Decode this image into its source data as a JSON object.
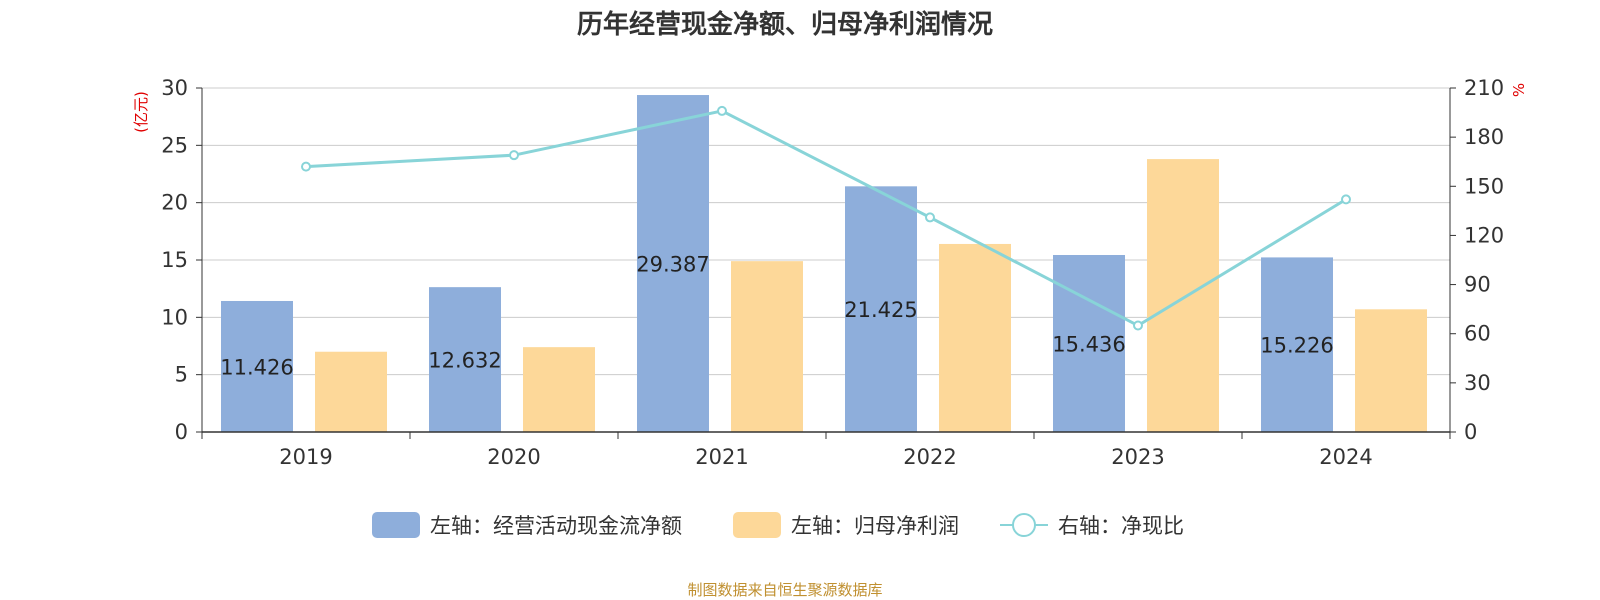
{
  "title": "历年经营现金净额、归母净利润情况",
  "footer": "制图数据来自恒生聚源数据库",
  "chart_data": {
    "type": "bar",
    "categories": [
      "2019",
      "2020",
      "2021",
      "2022",
      "2023",
      "2024"
    ],
    "left_axis": {
      "unit": "(亿元)",
      "range": [
        0,
        30
      ],
      "ticks": [
        "0",
        "5",
        "10",
        "15",
        "20",
        "25",
        "30"
      ]
    },
    "right_axis": {
      "unit": "%",
      "range": [
        0,
        210
      ],
      "ticks": [
        "0",
        "30",
        "60",
        "90",
        "120",
        "150",
        "180",
        "210"
      ]
    },
    "series": [
      {
        "name": "左轴：经营活动现金流净额",
        "type": "bar",
        "axis": "left",
        "color": "#8eaedb",
        "values": [
          11.426,
          12.632,
          29.387,
          21.425,
          15.436,
          15.226
        ],
        "labels": [
          "11.426",
          "12.632",
          "29.387",
          "21.425",
          "15.436",
          "15.226"
        ]
      },
      {
        "name": "左轴：归母净利润",
        "type": "bar",
        "axis": "left",
        "color": "#fdd899",
        "values": [
          7.0,
          7.4,
          14.9,
          16.4,
          23.8,
          10.7
        ]
      },
      {
        "name": "右轴：净现比",
        "type": "line",
        "axis": "right",
        "color": "#88d4d8",
        "values": [
          162,
          169,
          196,
          131,
          65,
          142
        ]
      }
    ],
    "grid": true,
    "legend_position": "bottom"
  }
}
